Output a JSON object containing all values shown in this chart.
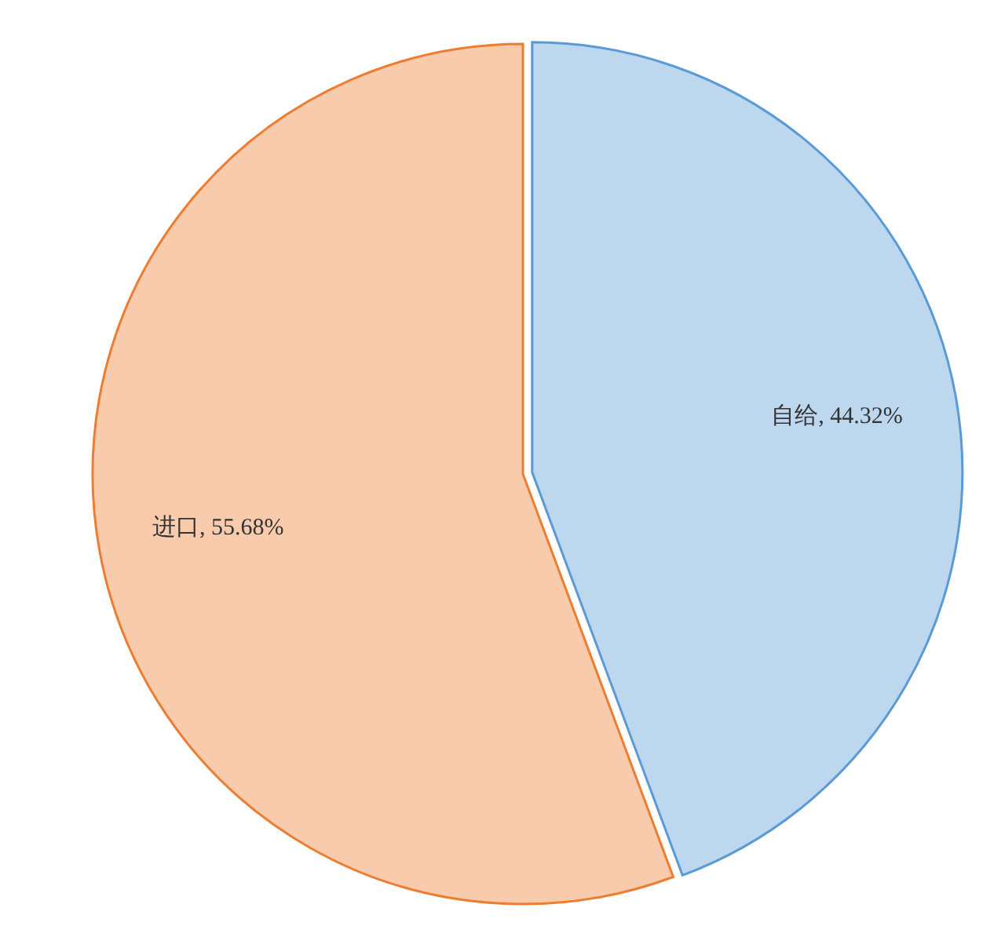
{
  "chart_data": {
    "type": "pie",
    "categories": [
      "自给",
      "进口"
    ],
    "values": [
      44.32,
      55.68
    ],
    "colors": [
      "#bdd7ee",
      "#f8cbad"
    ],
    "value_labels": [
      "44.32%",
      "55.68%"
    ]
  }
}
